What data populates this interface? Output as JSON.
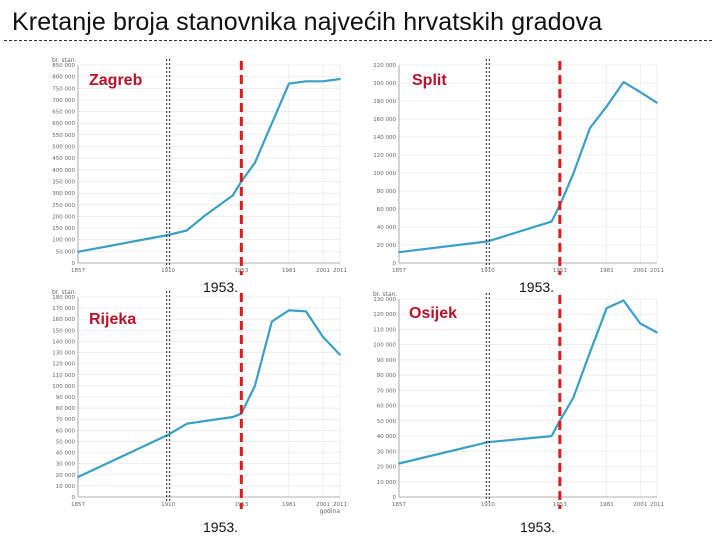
{
  "title": "Kretanje broja stanovnika najvećih hrvatskih gradova",
  "colors": {
    "line": "#3a9fc6",
    "marker": "#e01a1a",
    "label": "#b8122a",
    "grid": "#e3e3e3"
  },
  "chart_data": [
    {
      "type": "line",
      "name": "Zagreb",
      "unit_label": "br. stan.",
      "x_label": "",
      "x": [
        1857,
        1910,
        1921,
        1931,
        1948,
        1953,
        1961,
        1971,
        1981,
        1991,
        2001,
        2011
      ],
      "x_ticks": [
        "1857",
        "1910",
        "1953",
        "1981",
        "2001",
        "2011"
      ],
      "x_tick_values": [
        1857,
        1910,
        1953,
        1981,
        2001,
        2011
      ],
      "values": [
        48000,
        120000,
        140000,
        200000,
        290000,
        350000,
        430000,
        600000,
        770000,
        780000,
        780000,
        790000
      ],
      "ylim": [
        0,
        850000
      ],
      "y_ticks": [
        "850 000",
        "800 000",
        "750 000",
        "700 000",
        "650 000",
        "600 000",
        "550 000",
        "500 000",
        "450 000",
        "400 000",
        "350 000",
        "300 000",
        "250 000",
        "200 000",
        "150 000",
        "100 000",
        "50 000",
        "0"
      ],
      "y_tick_values": [
        850000,
        800000,
        750000,
        700000,
        650000,
        600000,
        550000,
        500000,
        450000,
        400000,
        350000,
        300000,
        250000,
        200000,
        150000,
        100000,
        50000,
        0
      ],
      "dotted_marker_year": 1910,
      "marker_year": 1953,
      "marker_label": "1953.",
      "grid": true
    },
    {
      "type": "line",
      "name": "Split",
      "unit_label": "",
      "x_label": "",
      "x": [
        1857,
        1910,
        1948,
        1953,
        1961,
        1971,
        1981,
        1991,
        2001,
        2011
      ],
      "x_ticks": [
        "1857",
        "1910",
        "1953",
        "1981",
        "2001",
        "2011"
      ],
      "x_tick_values": [
        1857,
        1910,
        1953,
        1981,
        2001,
        2011
      ],
      "values": [
        12000,
        24000,
        46000,
        64000,
        99000,
        150000,
        174000,
        201000,
        190000,
        178000
      ],
      "ylim": [
        0,
        220000
      ],
      "y_ticks": [
        "220 000",
        "200 000",
        "180 000",
        "160 000",
        "140 000",
        "120 000",
        "100 000",
        "80 000",
        "60 000",
        "40 000",
        "20 000",
        "0"
      ],
      "y_tick_values": [
        220000,
        200000,
        180000,
        160000,
        140000,
        120000,
        100000,
        80000,
        60000,
        40000,
        20000,
        0
      ],
      "dotted_marker_year": 1910,
      "marker_year": 1953,
      "marker_label": "1953.",
      "grid": true
    },
    {
      "type": "line",
      "name": "Rijeka",
      "unit_label": "br. stan.",
      "x_label": "godina",
      "x": [
        1857,
        1910,
        1921,
        1948,
        1953,
        1961,
        1971,
        1981,
        1991,
        2001,
        2011
      ],
      "x_ticks": [
        "1857",
        "1910",
        "1953",
        "1981",
        "2001",
        "2011"
      ],
      "x_tick_values": [
        1857,
        1910,
        1953,
        1981,
        2001,
        2011
      ],
      "values": [
        18000,
        56000,
        66000,
        72000,
        75000,
        100000,
        158000,
        168000,
        167000,
        144000,
        128000
      ],
      "ylim": [
        0,
        180000
      ],
      "y_ticks": [
        "180 000",
        "170 000",
        "160 000",
        "150 000",
        "140 000",
        "130 000",
        "120 000",
        "110 000",
        "100 000",
        "90 000",
        "80 000",
        "70 000",
        "60 000",
        "50 000",
        "40 000",
        "30 000",
        "20 000",
        "10 000",
        "0"
      ],
      "y_tick_values": [
        180000,
        170000,
        160000,
        150000,
        140000,
        130000,
        120000,
        110000,
        100000,
        90000,
        80000,
        70000,
        60000,
        50000,
        40000,
        30000,
        20000,
        10000,
        0
      ],
      "dotted_marker_year": 1910,
      "marker_year": 1953,
      "marker_label": "1953.",
      "grid": true
    },
    {
      "type": "line",
      "name": "Osijek",
      "unit_label": "br. stan.",
      "x_label": "",
      "x": [
        1857,
        1910,
        1948,
        1953,
        1961,
        1971,
        1981,
        1991,
        2001,
        2011
      ],
      "x_ticks": [
        "1857",
        "1910",
        "1953",
        "1981",
        "2001",
        "2011"
      ],
      "x_tick_values": [
        1857,
        1910,
        1953,
        1981,
        2001,
        2011
      ],
      "values": [
        22000,
        36000,
        40000,
        50000,
        65000,
        95000,
        124000,
        129000,
        114000,
        108000
      ],
      "ylim": [
        0,
        130000
      ],
      "y_ticks": [
        "130 000",
        "120 000",
        "110 000",
        "100 000",
        "90 000",
        "80 000",
        "70 000",
        "60 000",
        "50 000",
        "40 000",
        "30 000",
        "20 000",
        "10 000",
        "0"
      ],
      "y_tick_values": [
        130000,
        120000,
        110000,
        100000,
        90000,
        80000,
        70000,
        60000,
        50000,
        40000,
        30000,
        20000,
        10000,
        0
      ],
      "dotted_marker_year": 1910,
      "marker_year": 1953,
      "marker_label": "1953.",
      "grid": true
    }
  ]
}
